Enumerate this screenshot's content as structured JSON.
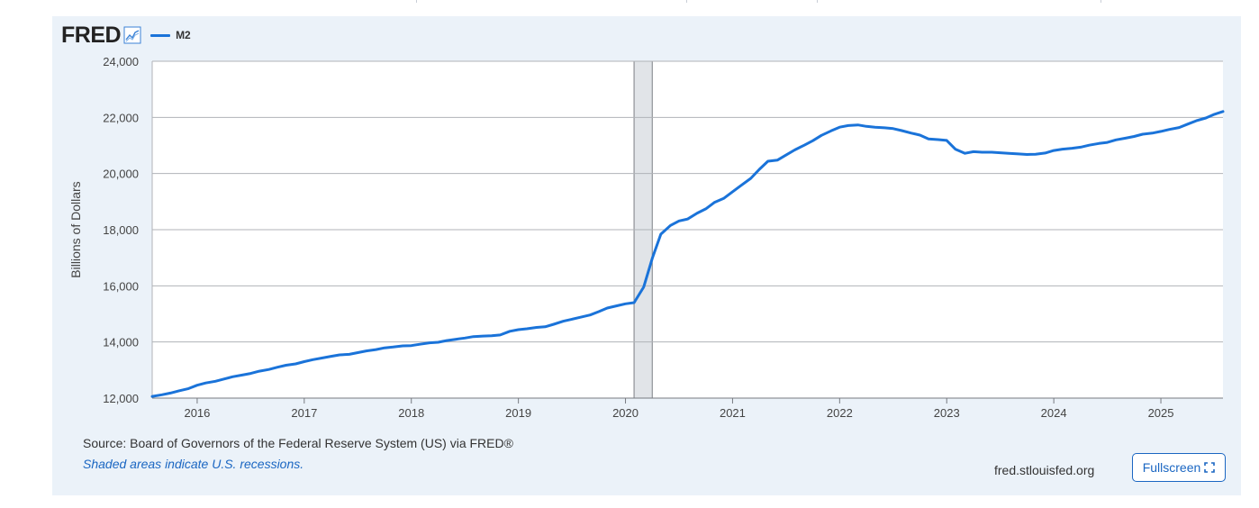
{
  "header": {
    "logo_text": "FRED",
    "legend_label": "M2"
  },
  "colors": {
    "series": "#1a73d9",
    "recession": "#e1e4e8",
    "panel": "#ebf2f9",
    "link": "#1a66c2"
  },
  "footer": {
    "source": "Source: Board of Governors of the Federal Reserve System (US) via FRED®",
    "recession_note": "Shaded areas indicate U.S. recessions.",
    "site": "fred.stlouisfed.org",
    "fullscreen_label": "Fullscreen",
    "fullscreen_icon": "expand-icon"
  },
  "chart_data": {
    "type": "line",
    "title": "",
    "xlabel": "",
    "ylabel": "Billions of Dollars",
    "xlim": [
      2015.58,
      2025.58
    ],
    "ylim": [
      12000,
      24000
    ],
    "yticks": [
      12000,
      14000,
      16000,
      18000,
      20000,
      22000,
      24000
    ],
    "ytick_labels": [
      "12,000",
      "14,000",
      "16,000",
      "18,000",
      "20,000",
      "22,000",
      "24,000"
    ],
    "xticks": [
      2016,
      2017,
      2018,
      2019,
      2020,
      2021,
      2022,
      2023,
      2024,
      2025
    ],
    "xtick_labels": [
      "2016",
      "2017",
      "2018",
      "2019",
      "2020",
      "2021",
      "2022",
      "2023",
      "2024",
      "2025"
    ],
    "grid": "horizontal",
    "recessions": [
      {
        "start": 2020.08,
        "end": 2020.25
      }
    ],
    "series": [
      {
        "name": "M2",
        "x": [
          2015.58,
          2015.67,
          2015.75,
          2015.83,
          2015.92,
          2016.0,
          2016.08,
          2016.17,
          2016.25,
          2016.33,
          2016.42,
          2016.5,
          2016.58,
          2016.67,
          2016.75,
          2016.83,
          2016.92,
          2017.0,
          2017.08,
          2017.17,
          2017.25,
          2017.33,
          2017.42,
          2017.5,
          2017.58,
          2017.67,
          2017.75,
          2017.83,
          2017.92,
          2018.0,
          2018.08,
          2018.17,
          2018.25,
          2018.33,
          2018.42,
          2018.5,
          2018.58,
          2018.67,
          2018.75,
          2018.83,
          2018.92,
          2019.0,
          2019.08,
          2019.17,
          2019.25,
          2019.33,
          2019.42,
          2019.5,
          2019.58,
          2019.67,
          2019.75,
          2019.83,
          2019.92,
          2020.0,
          2020.08,
          2020.17,
          2020.25,
          2020.33,
          2020.42,
          2020.5,
          2020.58,
          2020.67,
          2020.75,
          2020.83,
          2020.92,
          2021.0,
          2021.08,
          2021.17,
          2021.25,
          2021.33,
          2021.42,
          2021.5,
          2021.58,
          2021.67,
          2021.75,
          2021.83,
          2021.92,
          2022.0,
          2022.08,
          2022.17,
          2022.25,
          2022.33,
          2022.42,
          2022.5,
          2022.58,
          2022.67,
          2022.75,
          2022.83,
          2022.92,
          2023.0,
          2023.08,
          2023.17,
          2023.25,
          2023.33,
          2023.42,
          2023.5,
          2023.58,
          2023.67,
          2023.75,
          2023.83,
          2023.92,
          2024.0,
          2024.08,
          2024.17,
          2024.25,
          2024.33,
          2024.42,
          2024.5,
          2024.58,
          2024.67,
          2024.75,
          2024.83,
          2024.92,
          2025.0,
          2025.08,
          2025.17,
          2025.25,
          2025.33,
          2025.42,
          2025.5,
          2025.58
        ],
        "values": [
          12060,
          12120,
          12180,
          12260,
          12340,
          12460,
          12540,
          12600,
          12680,
          12760,
          12820,
          12880,
          12960,
          13020,
          13100,
          13170,
          13220,
          13300,
          13370,
          13430,
          13490,
          13540,
          13560,
          13620,
          13680,
          13730,
          13790,
          13820,
          13860,
          13870,
          13920,
          13970,
          13990,
          14050,
          14100,
          14140,
          14190,
          14210,
          14220,
          14250,
          14380,
          14440,
          14470,
          14520,
          14540,
          14630,
          14740,
          14810,
          14880,
          14960,
          15080,
          15210,
          15290,
          15360,
          15400,
          15960,
          16980,
          17840,
          18150,
          18310,
          18380,
          18590,
          18740,
          18970,
          19120,
          19350,
          19580,
          19830,
          20150,
          20440,
          20480,
          20660,
          20840,
          21010,
          21170,
          21360,
          21520,
          21650,
          21710,
          21730,
          21680,
          21650,
          21630,
          21600,
          21530,
          21440,
          21370,
          21230,
          21210,
          21180,
          20870,
          20720,
          20780,
          20760,
          20760,
          20740,
          20720,
          20700,
          20680,
          20690,
          20730,
          20820,
          20870,
          20900,
          20940,
          21010,
          21070,
          21110,
          21200,
          21260,
          21320,
          21400,
          21440,
          21500,
          21570,
          21640,
          21760,
          21880,
          21980,
          22110,
          22210
        ]
      }
    ]
  }
}
